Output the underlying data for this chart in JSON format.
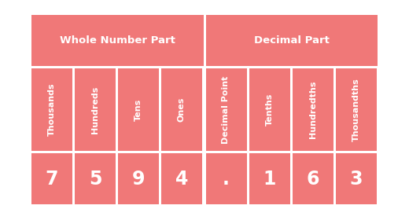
{
  "background_color": "#ffffff",
  "cell_color": "#F07878",
  "text_color": "#ffffff",
  "whole_number_label": "Whole Number Part",
  "decimal_label": "Decimal Part",
  "column_labels": [
    "Thousands",
    "Hundreds",
    "Tens",
    "Ones",
    "Decimal Point",
    "Tenths",
    "Hundredths",
    "Thousandths"
  ],
  "values": [
    "7",
    "5",
    "9",
    "4",
    ".",
    "1",
    "6",
    "3"
  ],
  "n_whole": 4,
  "n_decimal": 4,
  "header_fontsize": 9.5,
  "label_fontsize": 8.0,
  "value_fontsize": 17
}
